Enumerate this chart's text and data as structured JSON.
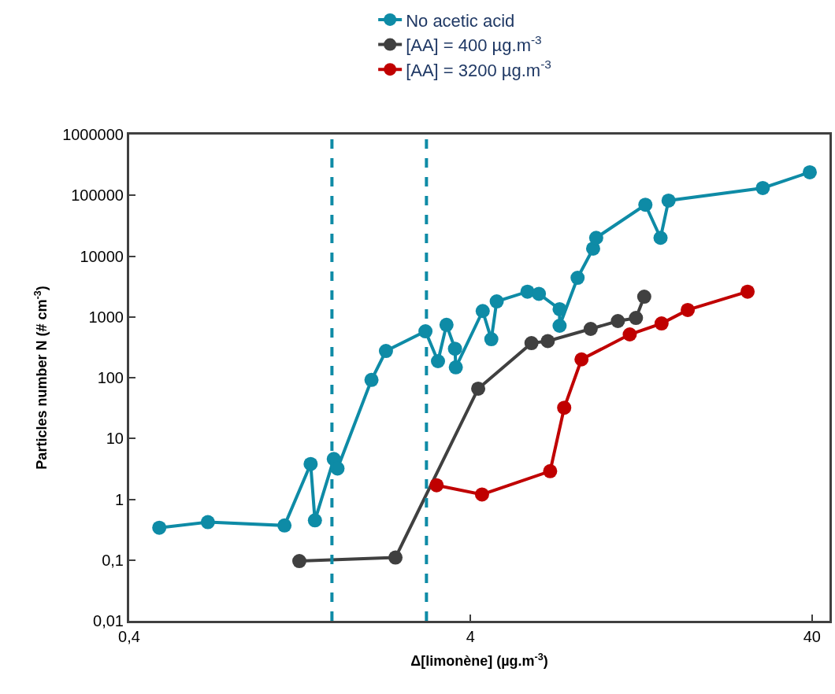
{
  "chart_data": {
    "type": "line",
    "xlabel": "Δ[limonène] (µg.m$^{-3}$)",
    "ylabel": "Particles number N (# cm$^{-3}$)",
    "log": "xy",
    "marker": "circle",
    "line_style": "solid",
    "grid": false,
    "legend": "top",
    "xlim": [
      0.4,
      45
    ],
    "xticks": [
      {
        "value": 0.4,
        "label": "0,4"
      },
      4,
      40
    ],
    "ylim": [
      0.01,
      1000000
    ],
    "yticks": [
      {
        "value": 0.01,
        "label": "0,01"
      },
      {
        "value": 0.1,
        "label": "0,1"
      },
      1,
      10,
      100,
      1000,
      10000,
      100000,
      1000000
    ],
    "series": [
      {
        "name": "No acetic acid",
        "color": "#0e8ba6",
        "x": [
          0.49,
          0.68,
          1.14,
          1.36,
          1.4,
          1.59,
          1.63,
          2.05,
          2.26,
          2.95,
          3.21,
          3.4,
          3.6,
          3.62,
          4.34,
          4.6,
          4.77,
          5.87,
          6.34,
          7.29,
          7.29,
          8.23,
          9.14,
          9.33,
          13,
          14.4,
          15.2,
          28.7,
          39.4
        ],
        "values": [
          0.34,
          0.42,
          0.37,
          3.8,
          0.45,
          4.6,
          3.2,
          92,
          275,
          580,
          187,
          740,
          300,
          148,
          1250,
          430,
          1800,
          2600,
          2400,
          1340,
          715,
          4400,
          13300,
          20000,
          70000,
          20000,
          82000,
          132000,
          240000
        ]
      },
      {
        "name": "[AA] = 400 µg.m$^{-3}$",
        "color": "#404040",
        "x": [
          1.26,
          2.41,
          4.21,
          6.03,
          6.73,
          8.99,
          10.8,
          12.2,
          12.9
        ],
        "values": [
          0.096,
          0.11,
          66,
          370,
          400,
          635,
          855,
          960,
          2150
        ]
      },
      {
        "name": "[AA] = 3200 µg.m$^{-3}$",
        "color": "#c00000",
        "x": [
          3.18,
          4.32,
          6.84,
          7.52,
          8.45,
          11.7,
          14.5,
          17.3,
          25.9
        ],
        "values": [
          1.7,
          1.2,
          2.9,
          32,
          200,
          515,
          780,
          1300,
          2600
        ]
      }
    ],
    "ref_lines": [
      {
        "axis": "x",
        "value": 1.57,
        "color": "#0e8ba6",
        "line_style": "dashed"
      },
      {
        "axis": "x",
        "value": 2.97,
        "color": "#0e8ba6",
        "line_style": "dashed"
      }
    ]
  }
}
